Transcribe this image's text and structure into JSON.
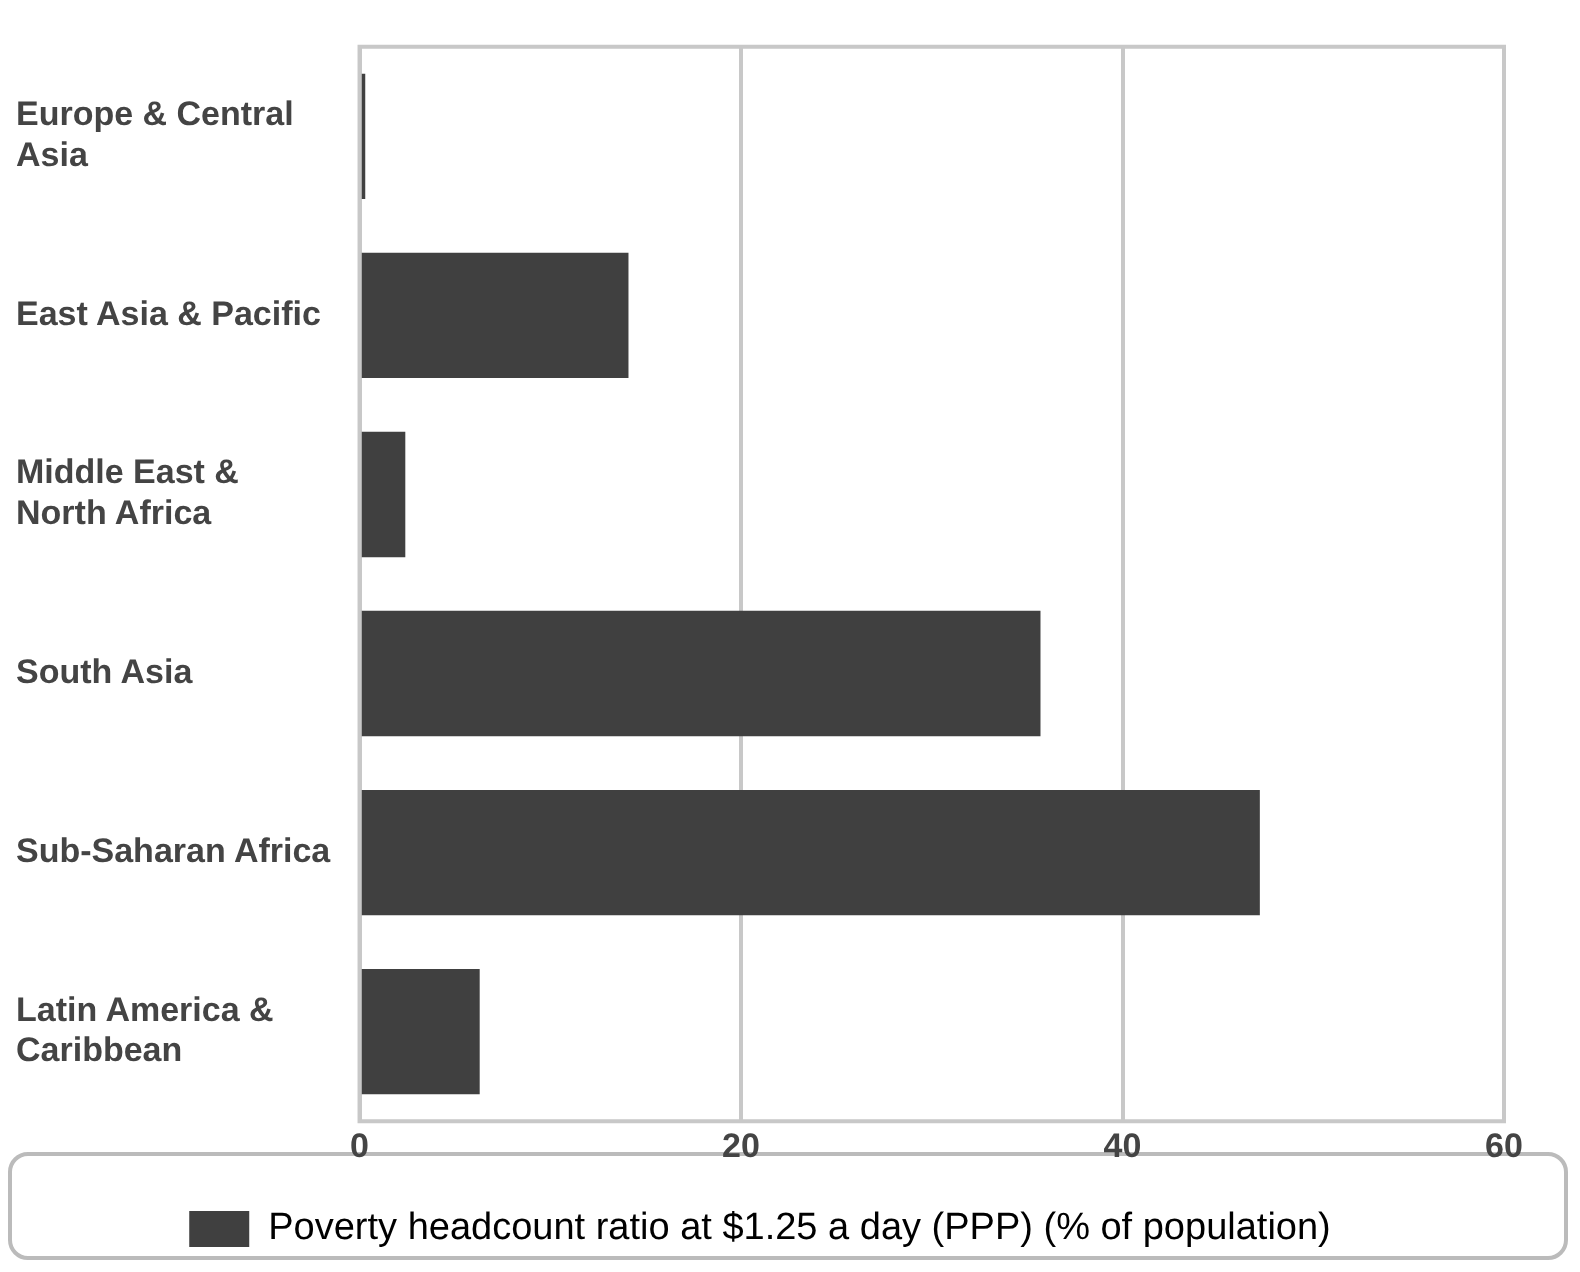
{
  "chart_data": {
    "type": "bar",
    "orientation": "horizontal",
    "categories": [
      "Europe & Central Asia",
      "East Asia & Pacific",
      "Middle East & North Africa",
      "South Asia",
      "Sub-Saharan Africa",
      "Latin America & Caribbean"
    ],
    "series": [
      {
        "name": "Poverty headcount ratio at $1.25 a day (PPP) (% of population)",
        "color": "#404040",
        "values": [
          0.3,
          14.1,
          2.4,
          35.7,
          47.2,
          6.3
        ]
      }
    ],
    "xlim": [
      0,
      60
    ],
    "xticks": [
      0,
      20,
      40,
      60
    ],
    "grid": "x",
    "legend": "bottom"
  }
}
